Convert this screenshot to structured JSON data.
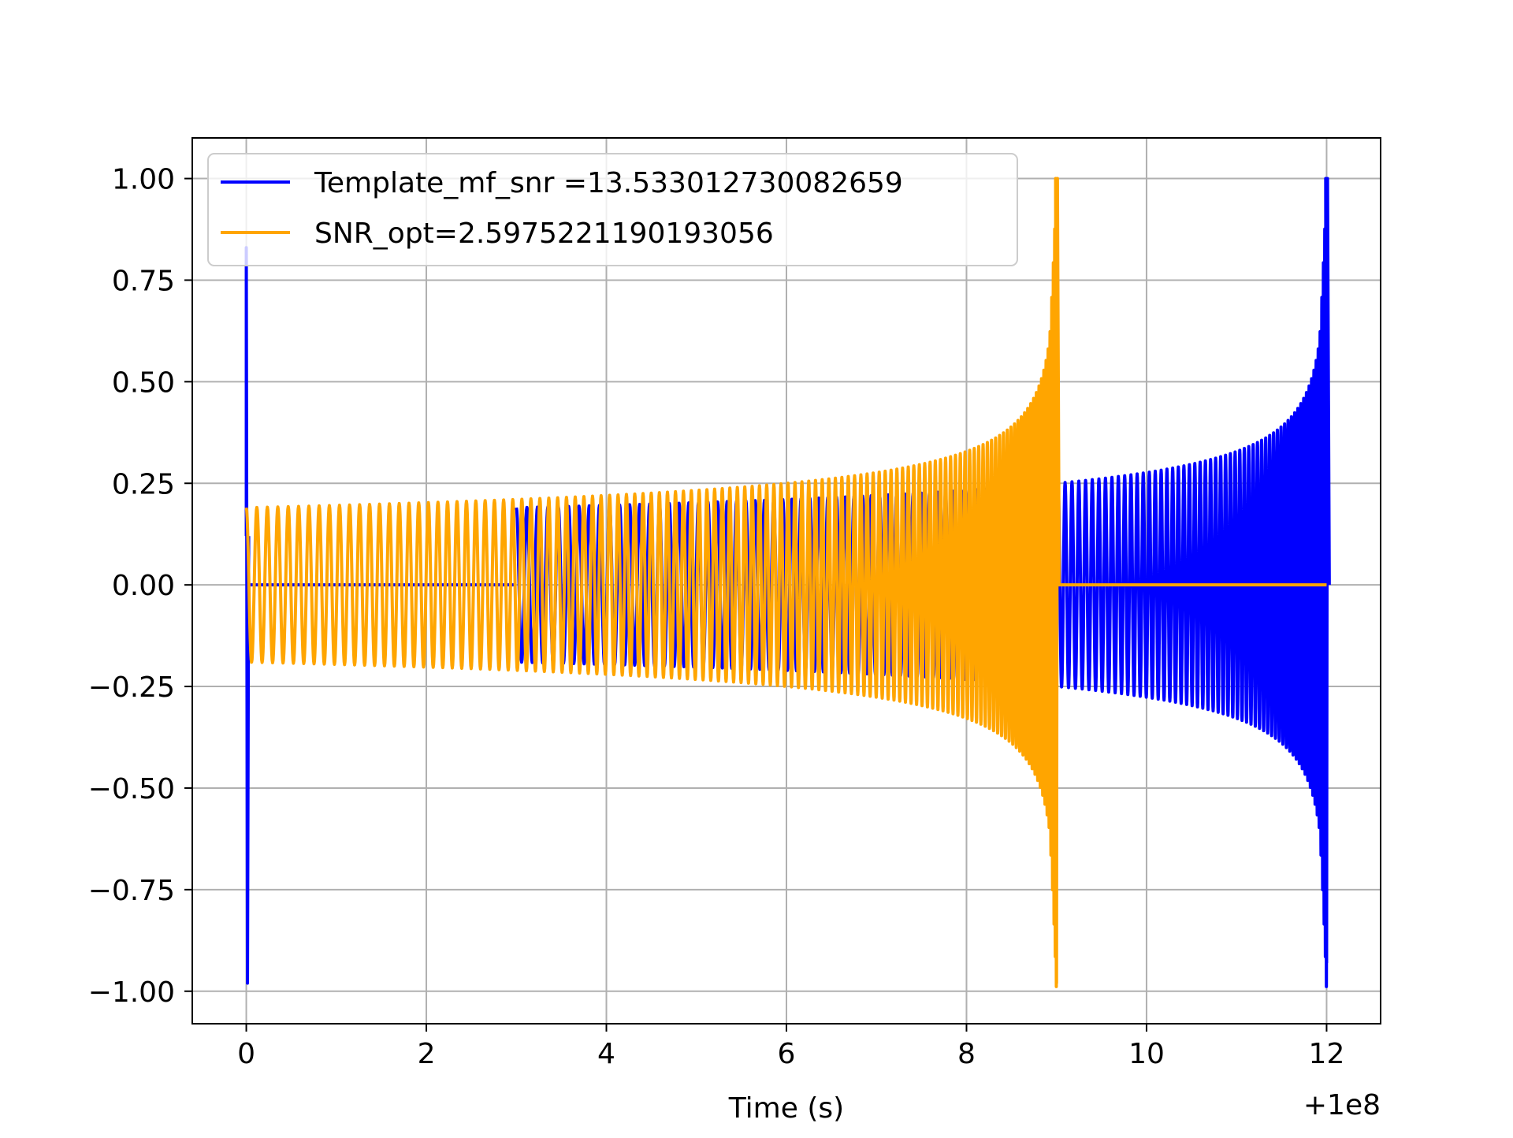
{
  "chart_data": {
    "type": "line",
    "title": "",
    "xlabel": "Time (s)",
    "ylabel": "",
    "x_offset_label": "+1e8",
    "xlim": [
      -0.6,
      12.6
    ],
    "ylim": [
      -1.08,
      1.1
    ],
    "xticks": [
      0,
      2,
      4,
      6,
      8,
      10,
      12
    ],
    "xtick_labels": [
      "0",
      "2",
      "4",
      "6",
      "8",
      "10",
      "12"
    ],
    "yticks": [
      1.0,
      0.75,
      0.5,
      0.25,
      0.0,
      -0.25,
      -0.5,
      -0.75,
      -1.0
    ],
    "ytick_labels": [
      "1.00",
      "0.75",
      "0.50",
      "0.25",
      "0.00",
      "−0.25",
      "−0.50",
      "−0.75",
      "−1.00"
    ],
    "grid": true,
    "legend_position": "top-left",
    "series": [
      {
        "name": "Template_mf_snr =13.533012730082659",
        "color": "#0000ff",
        "segments": [
          {
            "kind": "spike",
            "x": 0.0,
            "min": -0.98,
            "max": 0.83
          },
          {
            "kind": "zero",
            "x": [
              0.0,
              3.0
            ]
          },
          {
            "kind": "chirp",
            "x": [
              3.0,
              12.0
            ],
            "amp_start": 0.19,
            "amp_mid": 0.245,
            "cycles_start_per_s": 8.5,
            "merger_x": 12.0,
            "merger_max": 1.0,
            "merger_min": -0.93
          }
        ]
      },
      {
        "name": "SNR_opt=2.5975221190193056",
        "color": "#ffa500",
        "segments": [
          {
            "kind": "chirp",
            "x": [
              0.0,
              9.0
            ],
            "amp_start": 0.19,
            "amp_mid": 0.245,
            "cycles_start_per_s": 8.5,
            "merger_x": 9.0,
            "merger_max": 1.0,
            "merger_min": -0.98
          },
          {
            "kind": "zero",
            "x": [
              9.0,
              12.0
            ]
          }
        ]
      }
    ]
  }
}
